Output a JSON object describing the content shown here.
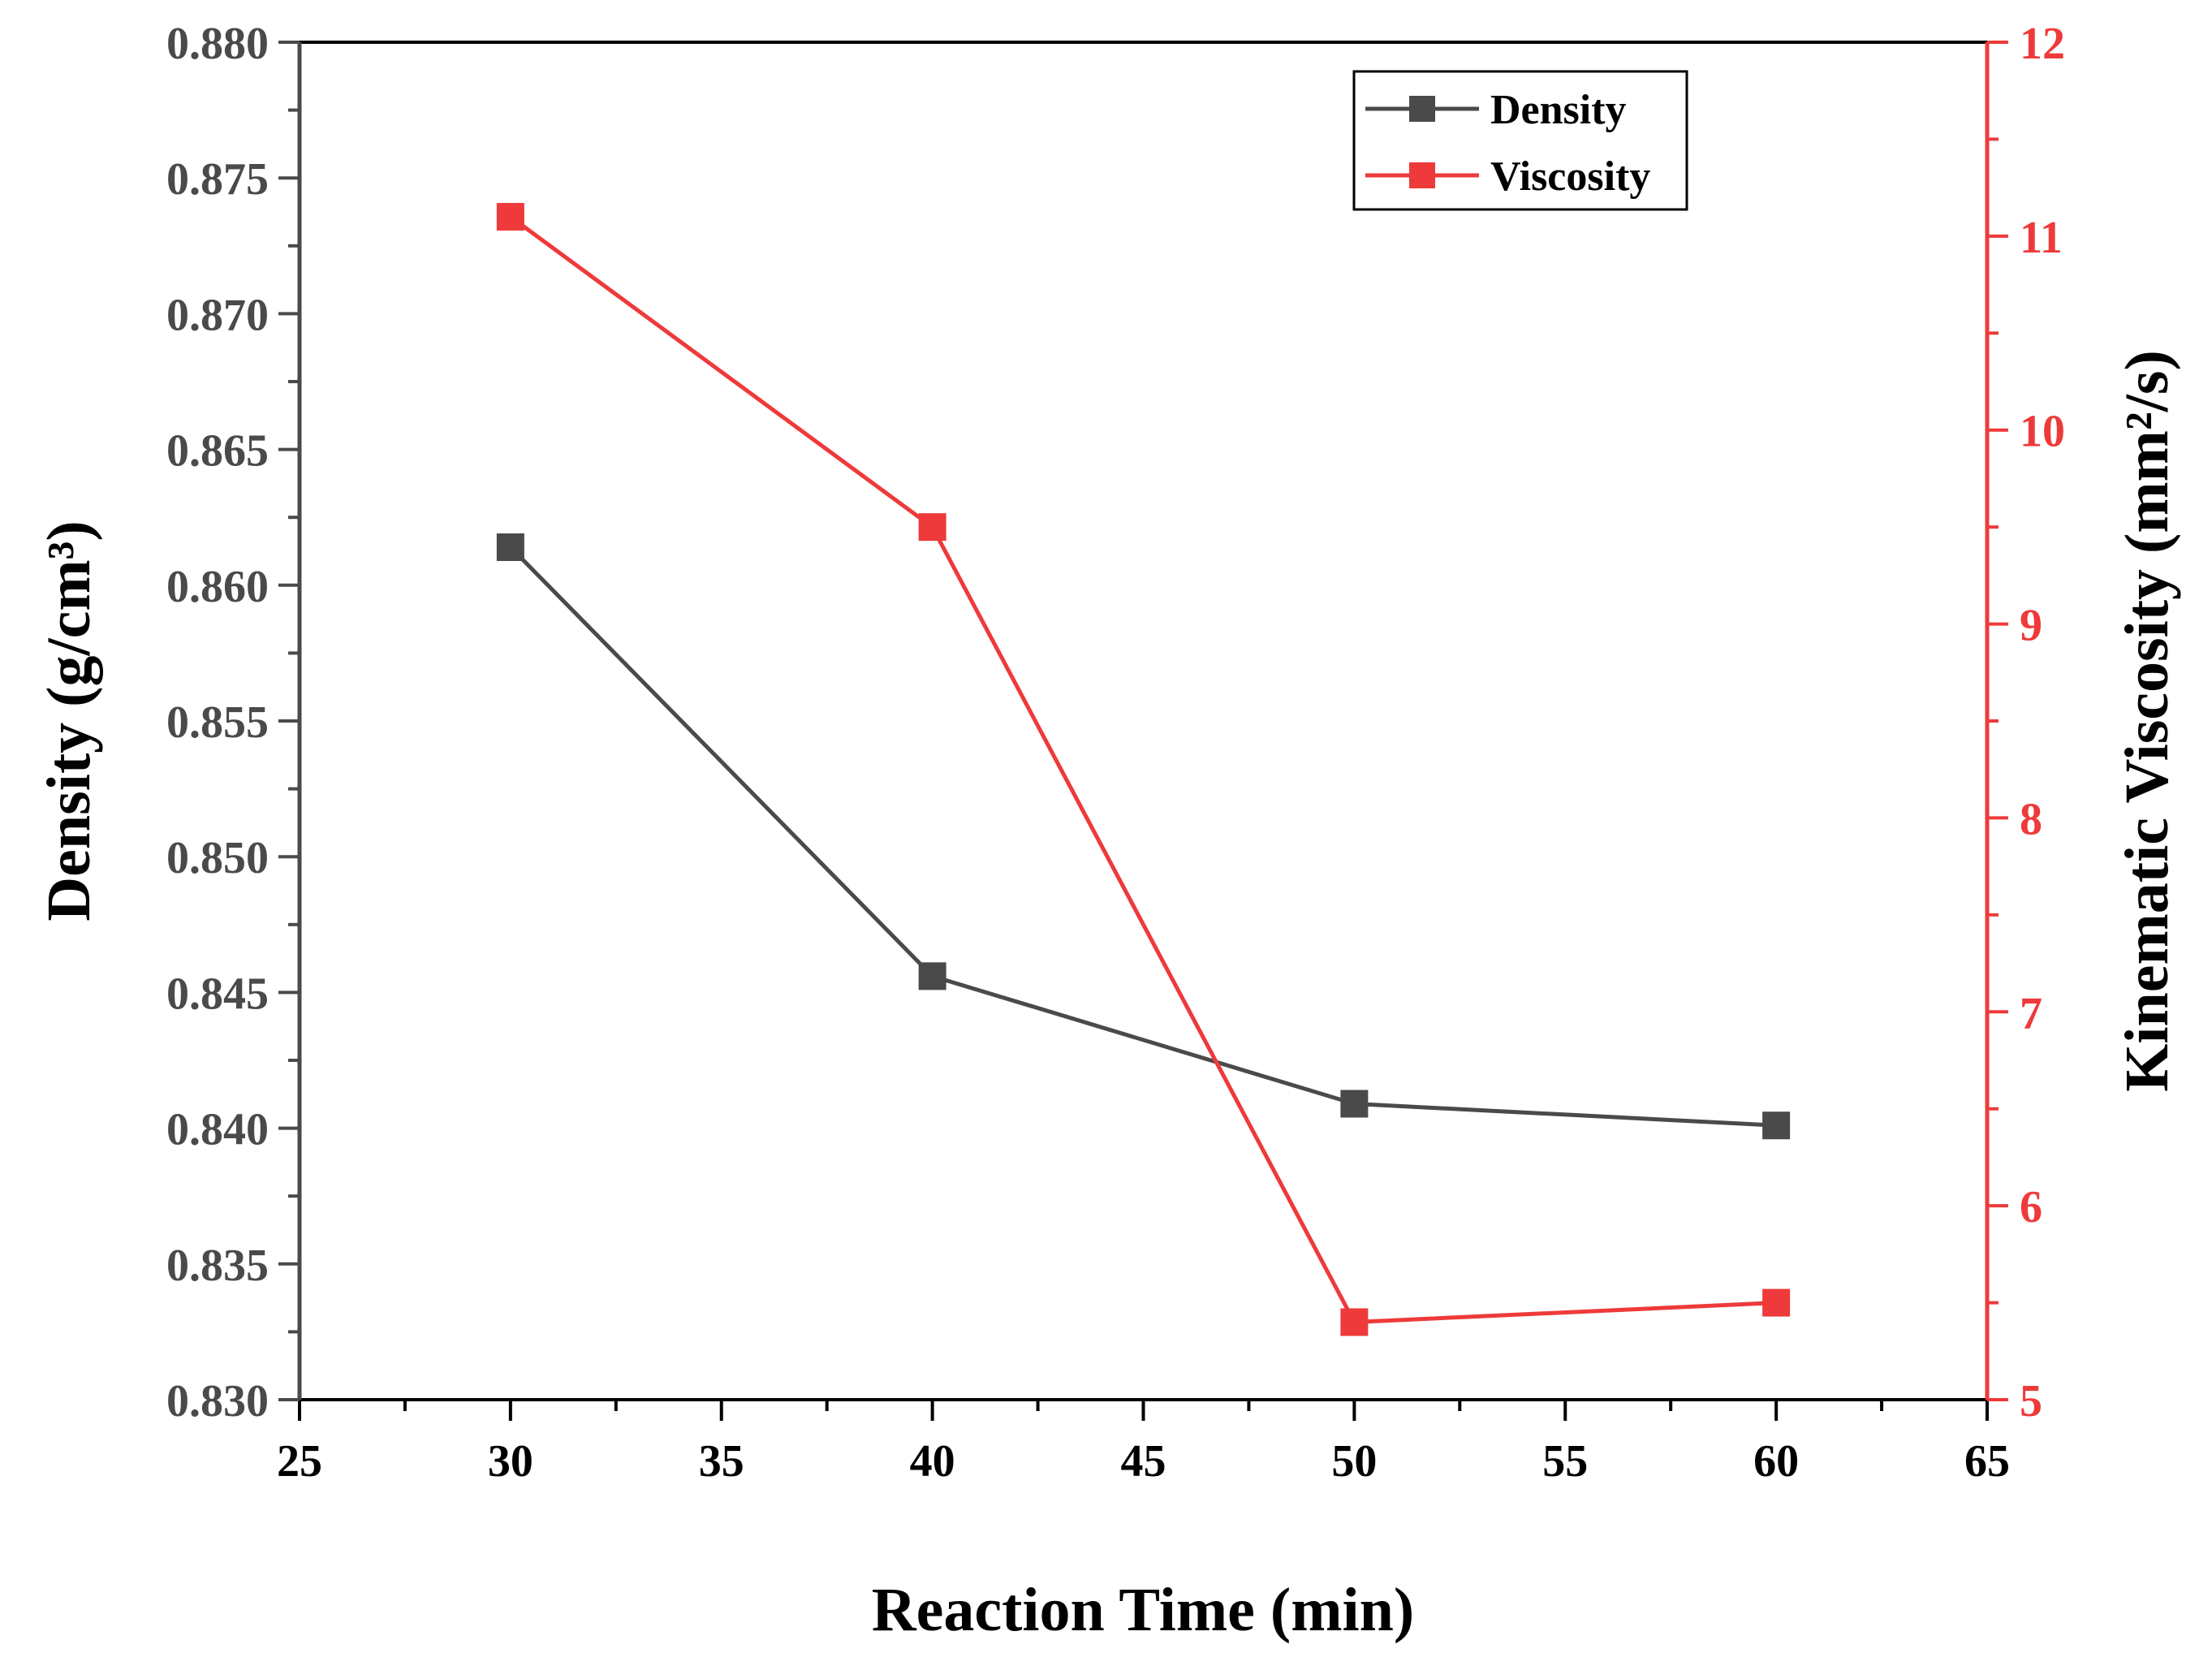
{
  "chart_data": {
    "type": "line",
    "title": "",
    "xlabel": "Reaction Time (min)",
    "ylabel_left": "Density (g/cm³)",
    "ylabel_right": "Kinematic Viscosity (mm²/s)",
    "xlim": [
      25,
      65
    ],
    "ylim_left": [
      0.83,
      0.88
    ],
    "ylim_right": [
      5,
      12
    ],
    "x_ticks": [
      "25",
      "30",
      "35",
      "40",
      "45",
      "50",
      "55",
      "60",
      "65"
    ],
    "y_left_ticks": [
      "0.830",
      "0.835",
      "0.840",
      "0.845",
      "0.850",
      "0.855",
      "0.860",
      "0.865",
      "0.870",
      "0.875",
      "0.880"
    ],
    "y_right_ticks": [
      "5",
      "6",
      "7",
      "8",
      "9",
      "10",
      "11",
      "12"
    ],
    "x": [
      30,
      40,
      50,
      60
    ],
    "series": [
      {
        "name": "Density",
        "axis": "left",
        "color": "#4a4a4a",
        "marker": "square",
        "values": [
          0.8614,
          0.8456,
          0.8409,
          0.8401
        ]
      },
      {
        "name": "Viscosity",
        "axis": "right",
        "color": "#ee3a3a",
        "marker": "square",
        "values": [
          11.1,
          9.5,
          5.4,
          5.5
        ]
      }
    ],
    "legend_position": "top-right",
    "grid": false
  }
}
